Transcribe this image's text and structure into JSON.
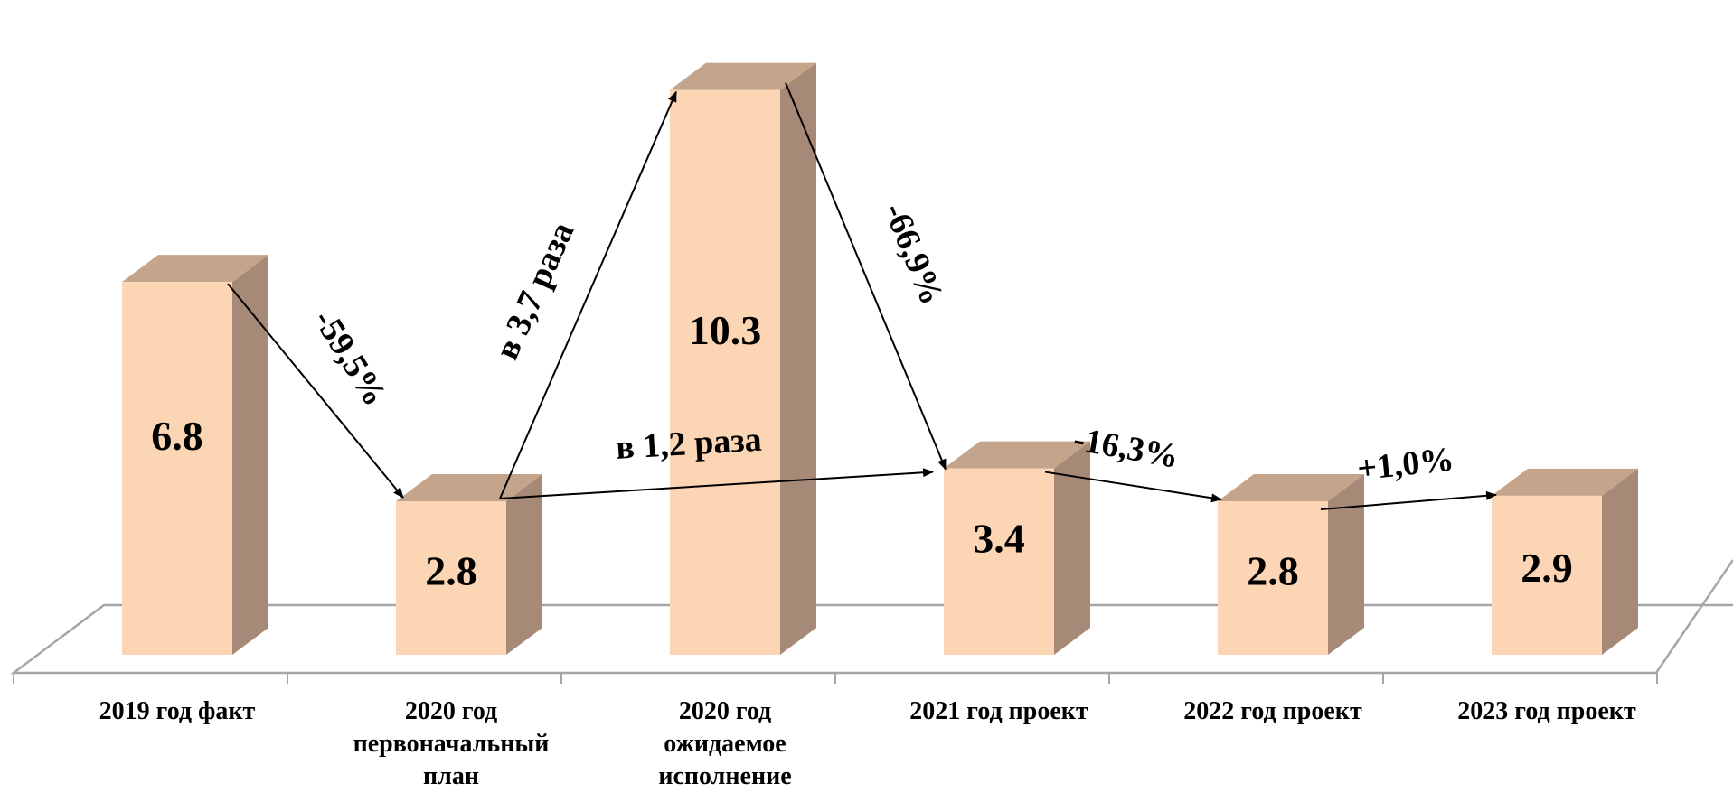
{
  "chart_data": {
    "type": "bar",
    "title": "",
    "xlabel": "",
    "ylabel": "",
    "ylim": [
      0,
      11.2
    ],
    "categories": [
      [
        "2019 год факт"
      ],
      [
        "2020 год",
        "первоначальный",
        "план"
      ],
      [
        "2020 год",
        "ожидаемое",
        "исполнение"
      ],
      [
        "2021 год проект"
      ],
      [
        "2022 год проект"
      ],
      [
        "2023 год проект"
      ]
    ],
    "values": [
      6.8,
      2.8,
      10.3,
      3.4,
      2.8,
      2.9
    ],
    "value_labels": [
      "6.8",
      "2.8",
      "10.3",
      "3.4",
      "2.8",
      "2.9"
    ],
    "annotations": [
      {
        "text": "-59,5%",
        "from": 0,
        "to": 1
      },
      {
        "text": "в 3,7 раза",
        "from": 1,
        "to": 2
      },
      {
        "text": "-66,9%",
        "from": 2,
        "to": 3
      },
      {
        "text": "в 1,2 раза",
        "from": 1,
        "to": 3
      },
      {
        "text": "-16,3%",
        "from": 3,
        "to": 4
      },
      {
        "text": "+1,0%",
        "from": 4,
        "to": 5
      }
    ],
    "colors": {
      "bar_front": "#fcd5b4",
      "bar_side": "#a68a77",
      "bar_top": "#c4a58c",
      "floor_line": "#a6a6a6"
    }
  }
}
